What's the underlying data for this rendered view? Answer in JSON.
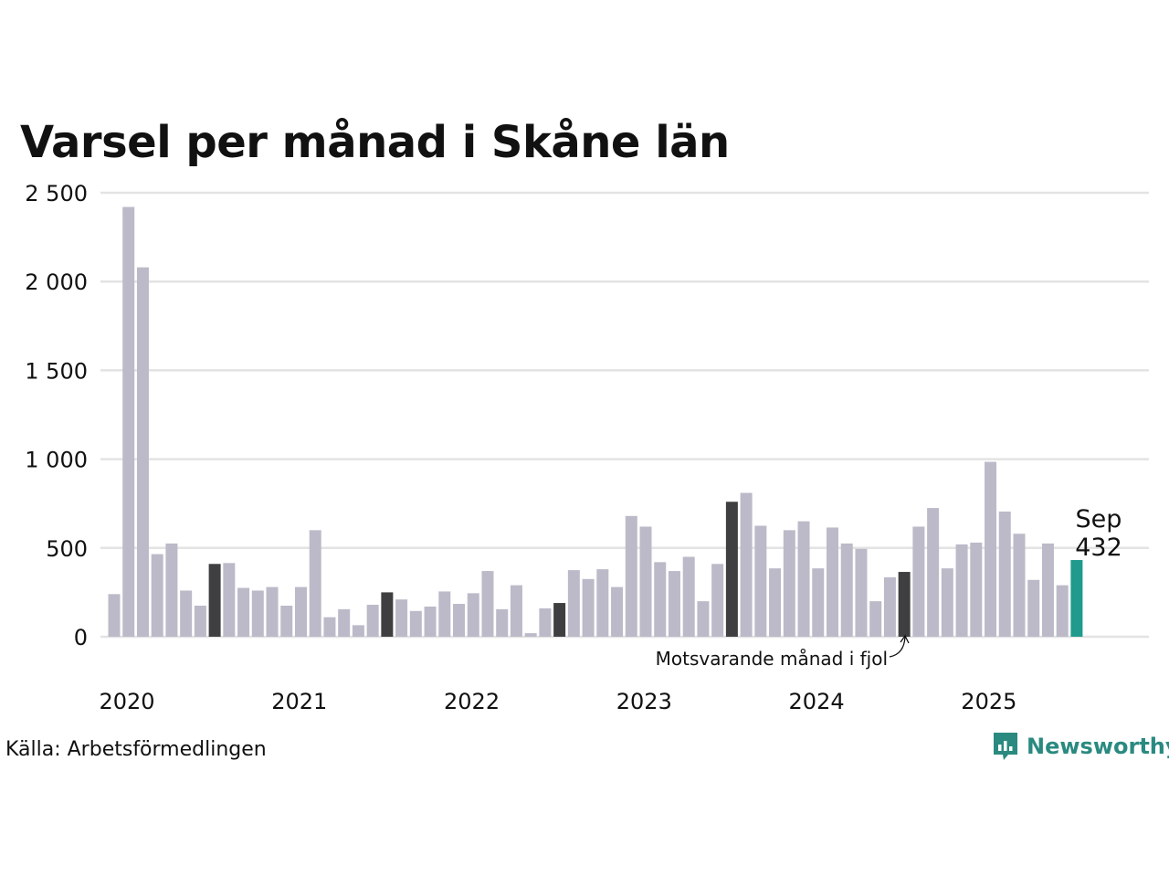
{
  "title": "Varsel per månad i Skåne län",
  "source": "Källa: Arbetsförmedlingen",
  "brand": "Newsworthy",
  "colors": {
    "bar": "#bcbac8",
    "highlight": "#3f3f41",
    "current": "#1f9a8c",
    "grid": "#e3e3e3",
    "brand": "#2a8a80"
  },
  "chart_data": {
    "type": "bar",
    "title": "Varsel per månad i Skåne län",
    "start": "2020-01",
    "ylim": [
      0,
      2500
    ],
    "yticks": [
      0,
      500,
      1000,
      1500,
      2000,
      2500
    ],
    "ytick_labels": [
      "0",
      "500",
      "1 000",
      "1 500",
      "2 000",
      "2 500"
    ],
    "xtick_labels": [
      "2020",
      "2021",
      "2022",
      "2023",
      "2024",
      "2025"
    ],
    "values": [
      240,
      2420,
      2080,
      465,
      525,
      260,
      175,
      410,
      415,
      275,
      260,
      280,
      175,
      280,
      600,
      110,
      155,
      65,
      180,
      250,
      210,
      145,
      170,
      255,
      185,
      245,
      370,
      155,
      290,
      20,
      160,
      190,
      375,
      325,
      380,
      280,
      680,
      620,
      420,
      370,
      450,
      200,
      410,
      760,
      810,
      625,
      385,
      600,
      650,
      385,
      615,
      525,
      495,
      200,
      335,
      365,
      620,
      725,
      385,
      520,
      530,
      985,
      705,
      580,
      320,
      525,
      290,
      432
    ],
    "highlight_indices": [
      7,
      19,
      31,
      43,
      55
    ],
    "current_index": 67,
    "annotation": "Motsvarande månad i fjol",
    "callout_label": "Sep",
    "callout_value": "432"
  }
}
